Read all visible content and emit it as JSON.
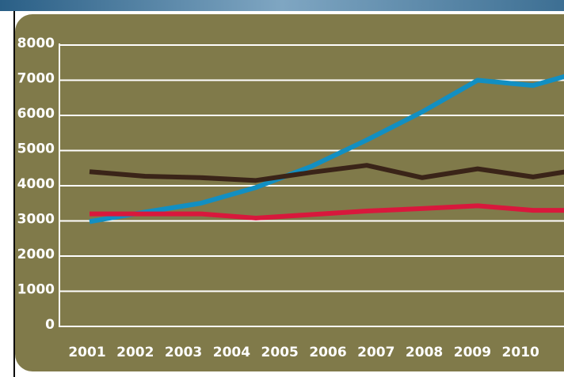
{
  "chart_data": {
    "type": "line",
    "categories": [
      "2001",
      "2002",
      "2003",
      "2004",
      "2005",
      "2006",
      "2007",
      "2008",
      "2009",
      "2010"
    ],
    "series": [
      {
        "color": "#128fc2",
        "values": [
          2980,
          3250,
          3500,
          3950,
          4550,
          5300,
          6100,
          7000,
          6850,
          7300
        ]
      },
      {
        "color": "#3a2418",
        "values": [
          4400,
          4270,
          4230,
          4150,
          4380,
          4580,
          4230,
          4480,
          4250,
          4500
        ]
      },
      {
        "color": "#d8183c",
        "values": [
          3200,
          3200,
          3200,
          3080,
          3180,
          3280,
          3350,
          3430,
          3300,
          3300
        ]
      }
    ],
    "ylim": [
      0,
      8000
    ],
    "yticks": [
      0,
      1000,
      2000,
      3000,
      4000,
      5000,
      6000,
      7000,
      8000
    ],
    "grid": true
  }
}
